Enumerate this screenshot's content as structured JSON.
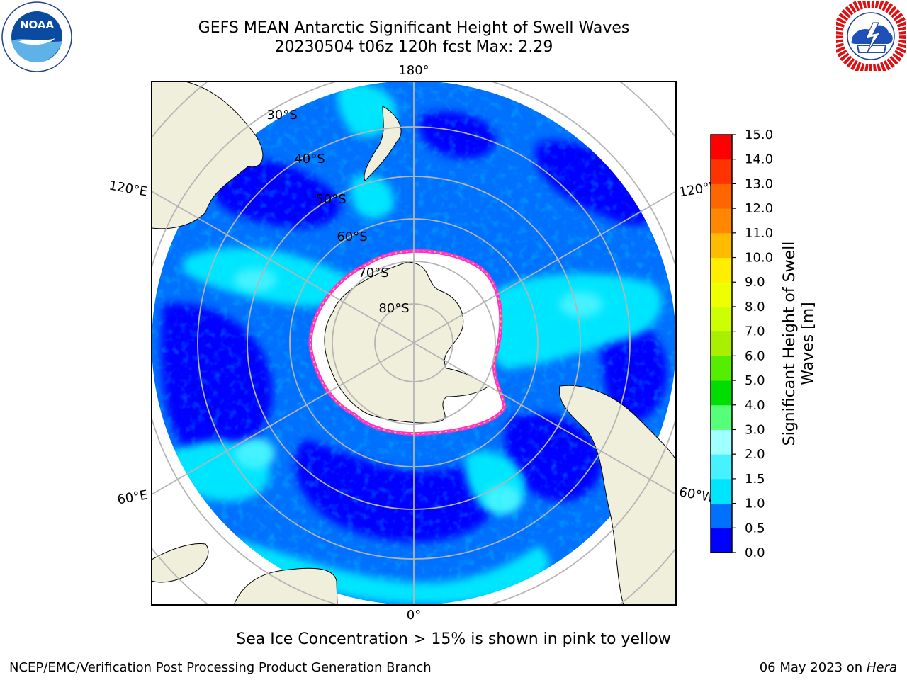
{
  "header": {
    "title": "GEFS MEAN Antarctic Significant Height of Swell Waves",
    "subtitle": "20230504 t06z 120h fcst   Max: 2.29"
  },
  "logos": {
    "left": {
      "name": "noaa-logo",
      "text": "NOAA",
      "ring_text": "NATIONAL OCEANIC AND ATMOSPHERIC ADMINISTRATION · U.S. DEPARTMENT OF COMMERCE"
    },
    "right": {
      "name": "nws-logo",
      "ring_text": "NATIONAL WEATHER SERVICE"
    }
  },
  "map": {
    "projection": "south polar stereographic",
    "longitude_labels": [
      "180°",
      "120°E",
      "120°W",
      "60°E",
      "60°W",
      "0°"
    ],
    "latitude_labels": [
      "30°S",
      "40°S",
      "50°S",
      "60°S",
      "70°S",
      "80°S"
    ],
    "colors": {
      "land": "#efefdc",
      "ice": "#ffffff",
      "grid": "#b5b5b5",
      "ice_edge": [
        "#ff33cc",
        "#ff66ff",
        "#ffcc33"
      ]
    }
  },
  "colorbar": {
    "label": "Significant Height of Swell Waves [m]",
    "tick_labels": [
      "0.0",
      "0.5",
      "1.0",
      "1.5",
      "2.0",
      "3.0",
      "4.0",
      "5.0",
      "6.0",
      "7.0",
      "8.0",
      "9.0",
      "10.0",
      "11.0",
      "12.0",
      "13.0",
      "14.0",
      "15.0"
    ],
    "colors": [
      "#0000ff",
      "#0070ff",
      "#00e5ff",
      "#46f2ff",
      "#a0ffff",
      "#55ff77",
      "#00dd00",
      "#55ee00",
      "#aaee00",
      "#ccff00",
      "#eeff00",
      "#ffee00",
      "#ffbb00",
      "#ff8800",
      "#ff6600",
      "#ff3300",
      "#ff0000"
    ]
  },
  "caption": "Sea Ice Concentration > 15% is shown in pink to yellow",
  "footer": {
    "left": "NCEP/EMC/Verification Post Processing Product Generation Branch",
    "date": "06 May 2023 on",
    "machine": "Hera"
  }
}
